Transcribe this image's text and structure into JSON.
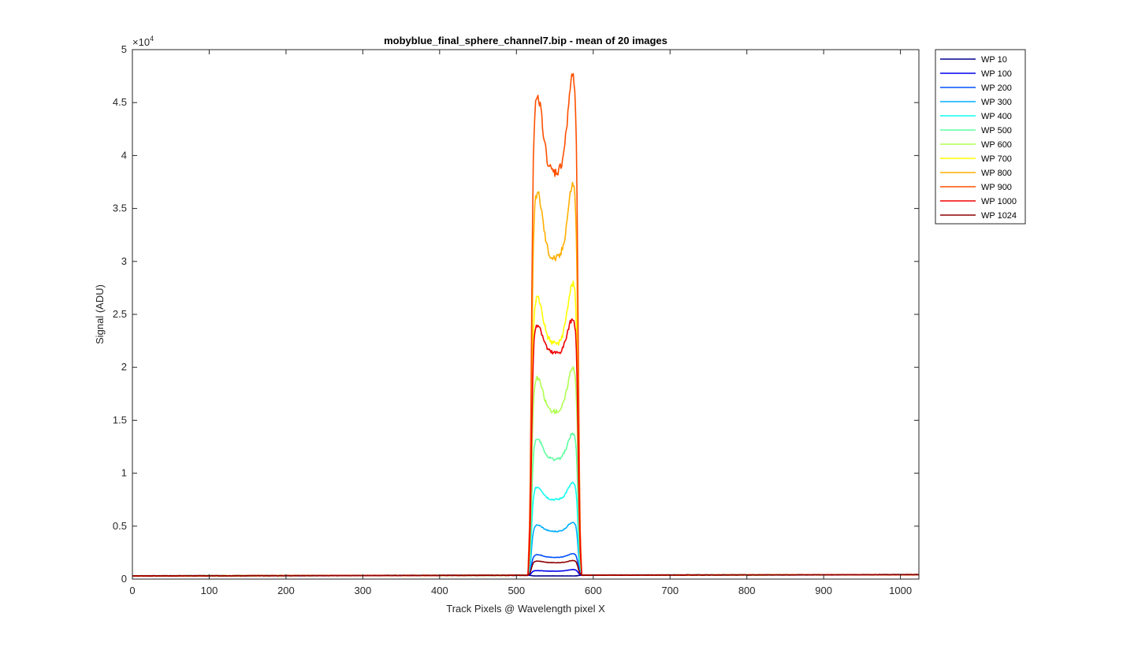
{
  "chart_data": {
    "type": "line",
    "title": "mobyblue_final_sphere_channel7.bip - mean of 20 images",
    "xlabel": "Track Pixels @ Wavelength pixel X",
    "ylabel": "Signal (ADU)",
    "xlim": [
      0,
      1024
    ],
    "ylim": [
      0,
      50000
    ],
    "y_exponent_label": "×10",
    "y_exponent_power": "4",
    "x_ticks": [
      0,
      100,
      200,
      300,
      400,
      500,
      600,
      700,
      800,
      900,
      1000
    ],
    "x_tick_labels": [
      "0",
      "100",
      "200",
      "300",
      "400",
      "500",
      "600",
      "700",
      "800",
      "900",
      "1000"
    ],
    "y_ticks": [
      0,
      5000,
      10000,
      15000,
      20000,
      25000,
      30000,
      35000,
      40000,
      45000,
      50000
    ],
    "y_tick_labels": [
      "0",
      "0.5",
      "1",
      "1.5",
      "2",
      "2.5",
      "3",
      "3.5",
      "4",
      "4.5",
      "5"
    ],
    "grid": false,
    "legend_position": "outside-top-right",
    "series": [
      {
        "name": "WP 10",
        "color": "#00008f",
        "baseline": 300,
        "base_right": 420,
        "peak_left": 300,
        "dip": 300,
        "peak_right": 300
      },
      {
        "name": "WP 100",
        "color": "#0000ef",
        "baseline": 300,
        "base_right": 420,
        "peak_left": 800,
        "dip": 750,
        "peak_right": 900
      },
      {
        "name": "WP 200",
        "color": "#0050ff",
        "baseline": 300,
        "base_right": 420,
        "peak_left": 2300,
        "dip": 2050,
        "peak_right": 2400
      },
      {
        "name": "WP 300",
        "color": "#00afff",
        "baseline": 300,
        "base_right": 420,
        "peak_left": 5100,
        "dip": 4500,
        "peak_right": 5400
      },
      {
        "name": "WP 400",
        "color": "#10ffef",
        "baseline": 300,
        "base_right": 420,
        "peak_left": 8700,
        "dip": 7500,
        "peak_right": 9100
      },
      {
        "name": "WP 500",
        "color": "#5fffa0",
        "baseline": 300,
        "base_right": 420,
        "peak_left": 13300,
        "dip": 11300,
        "peak_right": 13800
      },
      {
        "name": "WP 600",
        "color": "#afff50",
        "baseline": 300,
        "base_right": 420,
        "peak_left": 19000,
        "dip": 15800,
        "peak_right": 20100
      },
      {
        "name": "WP 700",
        "color": "#ffff00",
        "baseline": 300,
        "base_right": 420,
        "peak_left": 26600,
        "dip": 22200,
        "peak_right": 28000
      },
      {
        "name": "WP 800",
        "color": "#ffaf00",
        "baseline": 300,
        "base_right": 420,
        "peak_left": 36500,
        "dip": 30200,
        "peak_right": 37400
      },
      {
        "name": "WP 900",
        "color": "#ff5000",
        "baseline": 300,
        "base_right": 420,
        "peak_left": 45800,
        "dip": 38300,
        "peak_right": 47700
      },
      {
        "name": "WP 1000",
        "color": "#ef0000",
        "baseline": 300,
        "base_right": 420,
        "peak_left": 24100,
        "dip": 21300,
        "peak_right": 24700
      },
      {
        "name": "WP 1024",
        "color": "#8f0000",
        "baseline": 300,
        "base_right": 420,
        "peak_left": 1700,
        "dip": 1550,
        "peak_right": 1750
      }
    ]
  }
}
